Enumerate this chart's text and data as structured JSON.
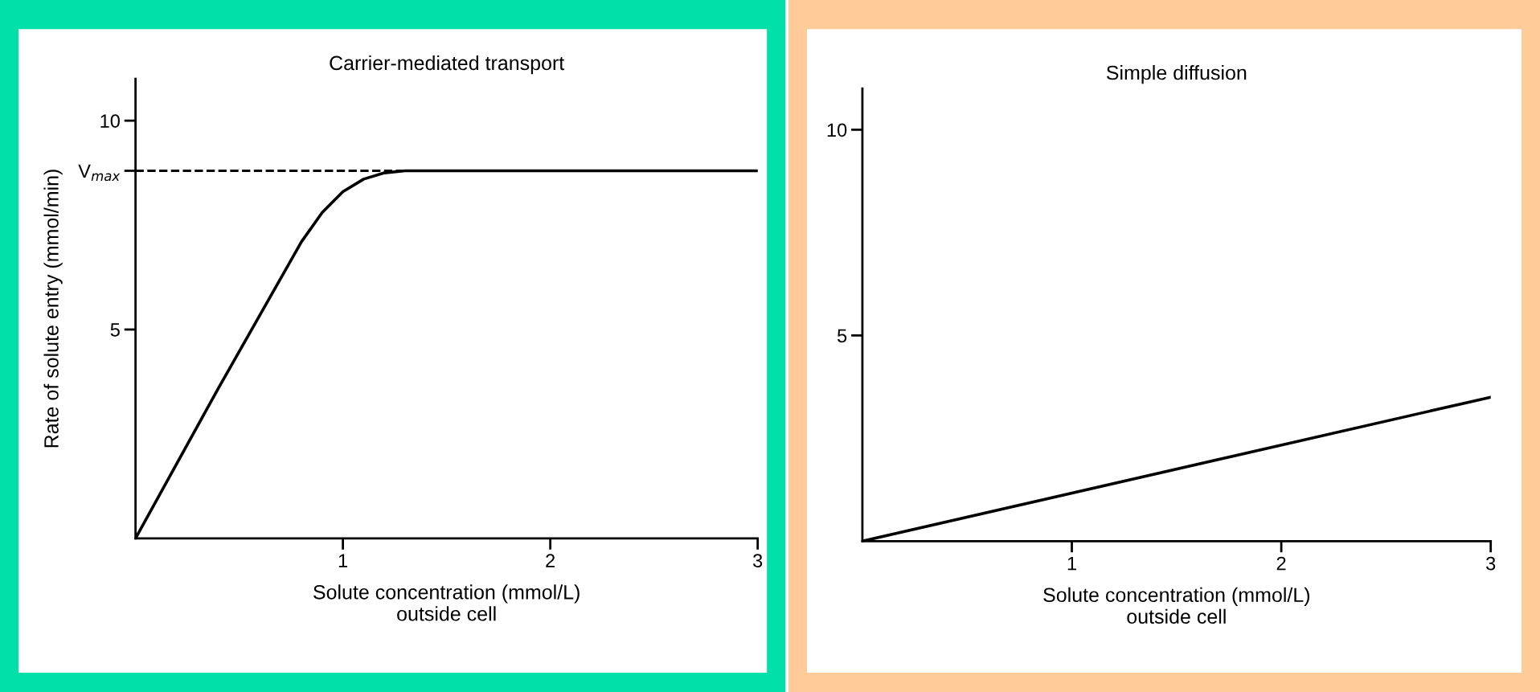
{
  "chart_data": [
    {
      "type": "line",
      "title": "Carrier-mediated transport",
      "xlabel": "Solute concentration (mmol/L)\noutside cell",
      "ylabel": "Rate of solute entry (mmol/min)",
      "series": [
        {
          "color": "#000000",
          "x": [
            0,
            0.4,
            0.8,
            0.9,
            1.0,
            1.1,
            1.2,
            1.3,
            3
          ],
          "values": [
            0,
            3.6,
            7.1,
            7.8,
            8.3,
            8.6,
            8.75,
            8.8,
            8.8
          ]
        }
      ],
      "xlim": [
        0,
        3
      ],
      "ylim": [
        0,
        11
      ],
      "xticks": [
        1,
        2,
        3
      ],
      "yticks": [
        5,
        {
          "value": 8.8,
          "label": "V$_{max}$"
        },
        10
      ],
      "ref_lines": [
        {
          "axis": "y",
          "value": 8.8,
          "color": "#000000",
          "line_style": "dashed"
        }
      ],
      "grid": false,
      "marker": "none",
      "line_style": "solid"
    },
    {
      "type": "line",
      "title": "Simple diffusion",
      "xlabel": "Solute concentration (mmol/L)\noutside cell",
      "series": [
        {
          "color": "#000000",
          "x": [
            0,
            3
          ],
          "values": [
            0,
            3.5
          ]
        }
      ],
      "xlim": [
        0,
        3
      ],
      "ylim": [
        0,
        11
      ],
      "xticks": [
        1,
        2,
        3
      ],
      "yticks": [
        5,
        10
      ],
      "grid": false,
      "marker": "none",
      "line_style": "solid"
    }
  ]
}
